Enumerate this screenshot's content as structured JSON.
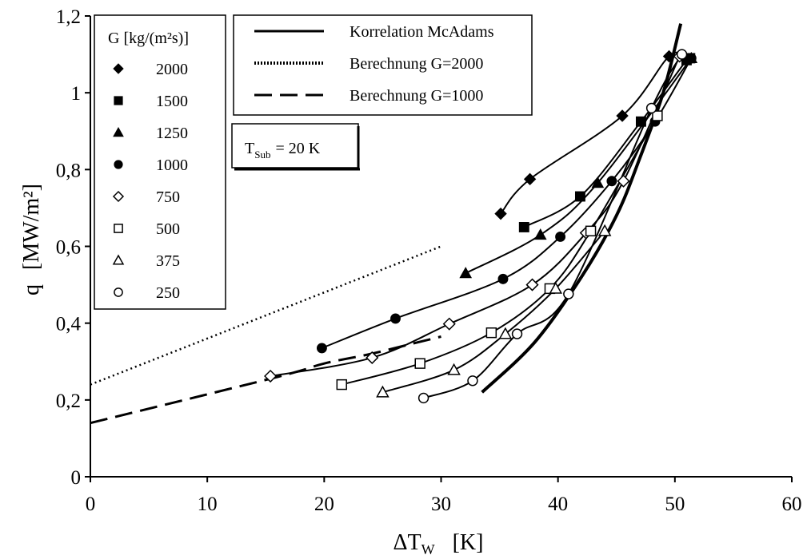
{
  "chart_data": {
    "type": "scatter",
    "xlabel": "ΔT",
    "xlabel_sub": "W",
    "xunit": "[K]",
    "ylabel": "q",
    "yunit": "[MW/m²]",
    "xlim": [
      0,
      60
    ],
    "ylim": [
      0,
      1.2
    ],
    "xticks": [
      "0",
      "10",
      "20",
      "30",
      "40",
      "50",
      "60"
    ],
    "yticks": [
      "0",
      "0,2",
      "0,4",
      "0,6",
      "0,8",
      "1",
      "1,2"
    ],
    "grid": false,
    "legend_title": "G  [kg/(m²s)]",
    "annotation": {
      "prefix": "T",
      "sub": "Sub",
      "value": "= 20 K"
    },
    "line_legend": [
      {
        "label": "Korrelation McAdams",
        "style": "solid"
      },
      {
        "label": "Berechnung G=2000",
        "style": "dotted"
      },
      {
        "label": "Berechnung G=1000",
        "style": "dashed"
      }
    ],
    "series": [
      {
        "name": "2000",
        "marker": "diamond",
        "filled": true,
        "x": [
          35.1,
          37.6,
          45.5,
          49.5,
          50.9
        ],
        "y": [
          0.685,
          0.775,
          0.94,
          1.095,
          1.09
        ]
      },
      {
        "name": "1500",
        "marker": "square",
        "filled": true,
        "x": [
          37.1,
          41.9,
          47.1,
          51.0,
          51.3
        ],
        "y": [
          0.65,
          0.73,
          0.925,
          1.085,
          1.09
        ]
      },
      {
        "name": "1250",
        "marker": "triangle",
        "filled": true,
        "x": [
          32.1,
          38.5,
          43.4,
          51.4
        ],
        "y": [
          0.53,
          0.63,
          0.765,
          1.09
        ]
      },
      {
        "name": "1000",
        "marker": "circle",
        "filled": true,
        "x": [
          19.8,
          26.1,
          35.3,
          40.2,
          44.6,
          48.3,
          51.4
        ],
        "y": [
          0.335,
          0.412,
          0.515,
          0.625,
          0.77,
          0.925,
          1.09
        ]
      },
      {
        "name": "750",
        "marker": "diamond",
        "filled": false,
        "x": [
          15.4,
          24.1,
          30.7,
          37.8,
          42.4,
          45.6,
          50.4
        ],
        "y": [
          0.262,
          0.31,
          0.398,
          0.5,
          0.635,
          0.77,
          1.095
        ]
      },
      {
        "name": "500",
        "marker": "square",
        "filled": false,
        "x": [
          21.5,
          28.2,
          34.3,
          39.3,
          42.8,
          48.5
        ],
        "y": [
          0.24,
          0.295,
          0.375,
          0.49,
          0.64,
          0.94
        ]
      },
      {
        "name": "375",
        "marker": "triangle",
        "filled": false,
        "x": [
          25.0,
          31.1,
          35.5,
          39.8,
          44.0
        ],
        "y": [
          0.22,
          0.278,
          0.372,
          0.49,
          0.64
        ]
      },
      {
        "name": "250",
        "marker": "circle",
        "filled": false,
        "x": [
          28.5,
          32.7,
          36.5,
          40.9,
          48.0,
          50.6
        ],
        "y": [
          0.205,
          0.25,
          0.372,
          0.476,
          0.96,
          1.1
        ]
      }
    ],
    "lines": [
      {
        "name": "Korrelation McAdams",
        "style": "solid",
        "x": [
          33.5,
          38,
          42,
          45,
          47,
          49,
          50.5
        ],
        "y": [
          0.22,
          0.35,
          0.52,
          0.68,
          0.83,
          1.0,
          1.18
        ]
      },
      {
        "name": "Berechnung G=2000",
        "style": "dotted",
        "x": [
          0,
          30
        ],
        "y": [
          0.24,
          0.6
        ]
      },
      {
        "name": "Berechnung G=1000",
        "style": "dashed",
        "x": [
          0,
          16,
          20,
          24,
          28,
          30
        ],
        "y": [
          0.14,
          0.26,
          0.295,
          0.32,
          0.35,
          0.365
        ]
      }
    ]
  }
}
